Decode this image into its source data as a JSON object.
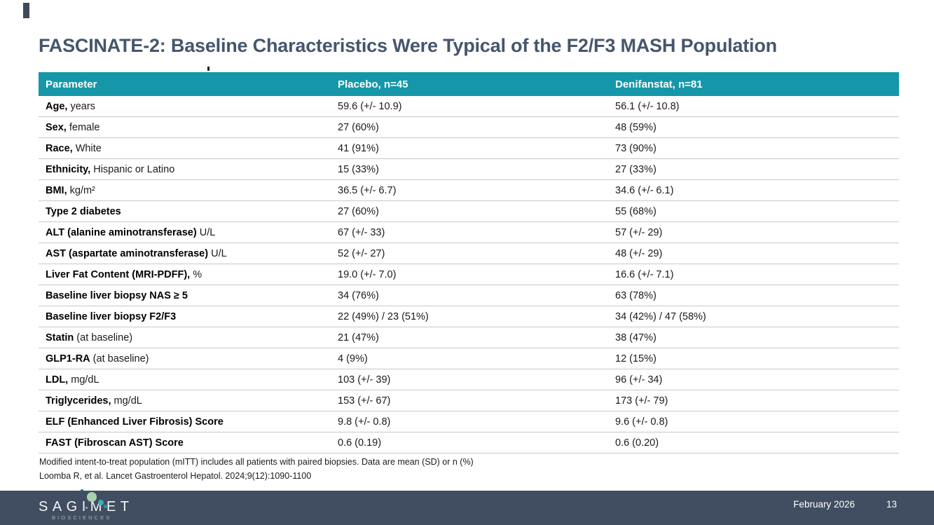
{
  "slide": {
    "title": "FASCINATE-2: Baseline Characteristics Were Typical of the F2/F3 MASH Population"
  },
  "table": {
    "headers": [
      "Parameter",
      "Placebo, n=45",
      "Denifanstat, n=81"
    ],
    "rows": [
      {
        "param_bold": "Age,",
        "param_rest": " years",
        "placebo": "59.6 (+/- 10.9)",
        "denifanstat": "56.1 (+/- 10.8)"
      },
      {
        "param_bold": "Sex,",
        "param_rest": " female",
        "placebo": "27 (60%)",
        "denifanstat": "48 (59%)"
      },
      {
        "param_bold": "Race,",
        "param_rest": " White",
        "placebo": "41 (91%)",
        "denifanstat": "73 (90%)"
      },
      {
        "param_bold": "Ethnicity,",
        "param_rest": " Hispanic or Latino",
        "placebo": "15 (33%)",
        "denifanstat": "27 (33%)"
      },
      {
        "param_bold": "BMI,",
        "param_rest": " kg/m²",
        "placebo": "36.5 (+/- 6.7)",
        "denifanstat": "34.6 (+/- 6.1)"
      },
      {
        "param_bold": "Type 2 diabetes",
        "param_rest": "",
        "placebo": "27 (60%)",
        "denifanstat": "55 (68%)"
      },
      {
        "param_bold": "ALT (alanine aminotransferase)",
        "param_rest": " U/L",
        "placebo": "67 (+/- 33)",
        "denifanstat": "57 (+/- 29)"
      },
      {
        "param_bold": "AST (aspartate aminotransferase)",
        "param_rest": " U/L",
        "placebo": "52 (+/- 27)",
        "denifanstat": "48 (+/- 29)"
      },
      {
        "param_bold": "Liver Fat Content (MRI-PDFF),",
        "param_rest": " %",
        "placebo": "19.0 (+/- 7.0)",
        "denifanstat": "16.6 (+/- 7.1)"
      },
      {
        "param_bold": "Baseline liver biopsy NAS ≥ 5",
        "param_rest": "",
        "placebo": "34 (76%)",
        "denifanstat": "63 (78%)"
      },
      {
        "param_bold": "Baseline liver biopsy F2/F3",
        "param_rest": "",
        "placebo": "22 (49%) / 23 (51%)",
        "denifanstat": "34 (42%) / 47 (58%)"
      },
      {
        "param_bold": "Statin",
        "param_rest": " (at baseline)",
        "placebo": "21 (47%)",
        "denifanstat": "38 (47%)"
      },
      {
        "param_bold": "GLP1-RA",
        "param_rest": " (at baseline)",
        "placebo": "4 (9%)",
        "denifanstat": "12 (15%)"
      },
      {
        "param_bold": "LDL,",
        "param_rest": " mg/dL",
        "placebo": "103 (+/- 39)",
        "denifanstat": "96 (+/- 34)"
      },
      {
        "param_bold": "Triglycerides,",
        "param_rest": " mg/dL",
        "placebo": "153 (+/- 67)",
        "denifanstat": "173 (+/- 79)"
      },
      {
        "param_bold": "ELF (Enhanced Liver Fibrosis) Score",
        "param_rest": "",
        "placebo": "9.8 (+/- 0.8)",
        "denifanstat": "9.6 (+/- 0.8)"
      },
      {
        "param_bold": "FAST (Fibroscan AST) Score",
        "param_rest": "",
        "placebo": "0.6 (0.19)",
        "denifanstat": "0.6 (0.20)"
      }
    ]
  },
  "footnotes": [
    "Modified intent-to-treat population (mITT) includes all patients with paired biopsies. Data are mean (SD) or n (%)",
    "Loomba R, et al. Lancet Gastroenterol Hepatol. 2024;9(12):1090-1100"
  ],
  "footer": {
    "logo_text": "SAGIMET",
    "logo_subtext": "BIOSCIENCES",
    "date": "February 2026",
    "page_number": "13"
  },
  "colors": {
    "header_teal": "#1597a9",
    "title_slate": "#45566c",
    "footer_slate": "#414e61",
    "row_divider": "#c9c9c9",
    "logo_dot_green": "#a6d3ad",
    "logo_dot_teal": "#3fadb9"
  }
}
